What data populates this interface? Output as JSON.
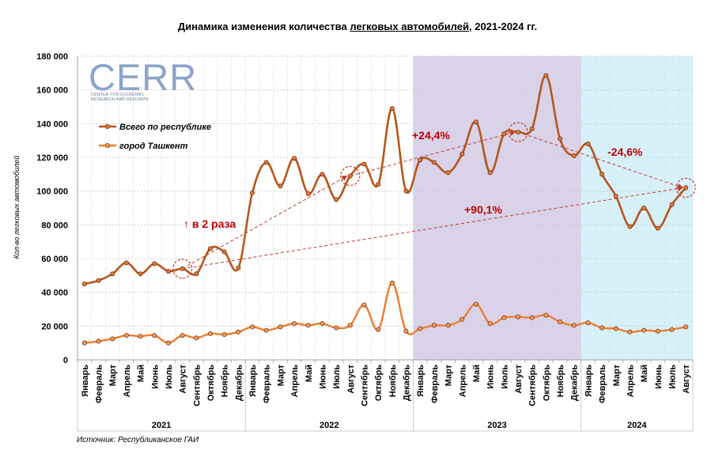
{
  "title_parts": [
    "Динамика изменения количества ",
    "легковых автомобилей",
    ", 2021-2024 гг."
  ],
  "source": "Источник: Республиканское ГАИ",
  "logo": {
    "text": "CERR",
    "subtitle_line1": "CENTER FOR ECONOMIC",
    "subtitle_line2": "RESEARCH AND REFORMS"
  },
  "chart_data": {
    "type": "line",
    "ylabel": "Кол-во легковых автомобилей",
    "ylim": [
      0,
      180000
    ],
    "y_ticks": [
      "0",
      "20 000",
      "40 000",
      "60 000",
      "80 000",
      "100 000",
      "120 000",
      "140 000",
      "160 000",
      "180 000"
    ],
    "grid": true,
    "legend_position": "top-left",
    "categories": [
      "Январь",
      "Февраль",
      "Март",
      "Апрель",
      "Май",
      "Июнь",
      "Июль",
      "Август",
      "Сентябрь",
      "Октябрь",
      "Ноябрь",
      "Декабрь",
      "Январь",
      "Февраль",
      "Март",
      "Апрель",
      "Май",
      "Июнь",
      "Июль",
      "Август",
      "Сентябрь",
      "Октябрь",
      "Ноябрь",
      "Декабрь",
      "Январь",
      "Февраль",
      "Март",
      "Апрель",
      "Май",
      "Июнь",
      "Июль",
      "Август",
      "Сентябрь",
      "Октябрь",
      "Ноябрь",
      "Декабрь",
      "Январь",
      "Февраль",
      "Март",
      "Апрель",
      "Май",
      "Июнь",
      "Июль",
      "Август"
    ],
    "year_groups": [
      {
        "label": "2021",
        "start": 0,
        "count": 12
      },
      {
        "label": "2022",
        "start": 12,
        "count": 12
      },
      {
        "label": "2023",
        "start": 24,
        "count": 12
      },
      {
        "label": "2024",
        "start": 36,
        "count": 8
      }
    ],
    "series": [
      {
        "name": "Всего по республике",
        "color": "#b5561b",
        "values": [
          45000,
          47000,
          51000,
          57500,
          51000,
          57000,
          52500,
          54000,
          51000,
          66000,
          64000,
          54500,
          99000,
          117000,
          103000,
          119500,
          98500,
          110000,
          95000,
          109000,
          116000,
          104000,
          149000,
          100000,
          118500,
          117000,
          111000,
          122000,
          141000,
          111000,
          134000,
          135000,
          137000,
          168500,
          131000,
          121000,
          128000,
          110000,
          97000,
          79000,
          90000,
          78000,
          92000,
          102000
        ]
      },
      {
        "name": "город Ташкент",
        "color": "#ed7d31",
        "values": [
          10000,
          11000,
          12500,
          14500,
          14000,
          14500,
          10000,
          14500,
          13000,
          15500,
          15000,
          16500,
          19500,
          17500,
          19500,
          21500,
          20500,
          21500,
          19000,
          20500,
          32500,
          18000,
          45500,
          17000,
          18500,
          20500,
          20500,
          24000,
          33000,
          21500,
          25000,
          25500,
          25000,
          26500,
          22500,
          20500,
          22000,
          19000,
          18500,
          16500,
          17500,
          17000,
          18000,
          19500
        ]
      }
    ],
    "shaded_periods": [
      {
        "year": "2023",
        "color": "#d9d2e9"
      },
      {
        "year": "2024",
        "color": "#d7f1fa"
      }
    ],
    "annotations": [
      {
        "text": "↑ в 2 раза",
        "color": "#c00000"
      },
      {
        "text": "+24,4%",
        "color": "#c00000"
      },
      {
        "text": "+90,1%",
        "color": "#c00000"
      },
      {
        "text": "-24,6%",
        "color": "#c00000"
      }
    ]
  }
}
